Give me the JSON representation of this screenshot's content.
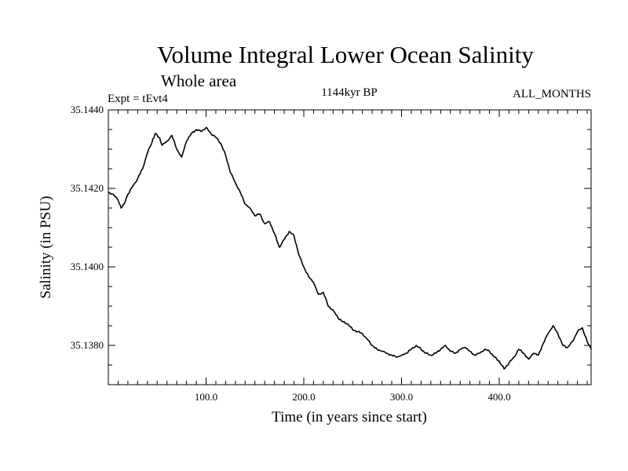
{
  "chart_data": {
    "type": "line",
    "title": "Volume Integral Lower Ocean Salinity",
    "subtitle": "Whole area",
    "annotations": {
      "left": "Expt = tEvt4",
      "center": "1144kyr BP",
      "right": "ALL_MONTHS"
    },
    "xlabel": "Time (in years since start)",
    "ylabel": "Salinity (in PSU)",
    "xlim": [
      0,
      494
    ],
    "ylim": [
      35.137,
      35.144
    ],
    "xticks": [
      100,
      200,
      300,
      400
    ],
    "xtick_labels": [
      "100.0",
      "200.0",
      "300.0",
      "400.0"
    ],
    "yticks": [
      35.138,
      35.14,
      35.142,
      35.144
    ],
    "ytick_labels": [
      "35.1380",
      "35.1400",
      "35.1420",
      "35.1440"
    ],
    "x_minor_step": 10,
    "y_minor_step": 0.0005,
    "grid": false,
    "series": [
      {
        "name": "salinity",
        "color": "#000000",
        "x": [
          0,
          5,
          10,
          13,
          16,
          20,
          25,
          30,
          35,
          40,
          45,
          48,
          52,
          55,
          60,
          65,
          70,
          75,
          80,
          85,
          90,
          95,
          100,
          105,
          110,
          115,
          120,
          125,
          130,
          135,
          140,
          145,
          150,
          155,
          160,
          165,
          170,
          175,
          180,
          185,
          190,
          195,
          200,
          205,
          210,
          215,
          220,
          225,
          230,
          235,
          240,
          245,
          250,
          255,
          260,
          265,
          270,
          275,
          280,
          285,
          290,
          295,
          300,
          305,
          310,
          315,
          320,
          325,
          330,
          335,
          340,
          345,
          350,
          355,
          360,
          365,
          370,
          375,
          380,
          385,
          390,
          395,
          400,
          405,
          410,
          415,
          420,
          425,
          430,
          435,
          440,
          445,
          450,
          455,
          460,
          465,
          470,
          475,
          480,
          485,
          490,
          494
        ],
        "y": [
          35.1419,
          35.14185,
          35.1417,
          35.1415,
          35.1416,
          35.14185,
          35.14205,
          35.14225,
          35.1425,
          35.1429,
          35.1432,
          35.1434,
          35.1433,
          35.1431,
          35.1432,
          35.14335,
          35.143,
          35.1428,
          35.1432,
          35.1434,
          35.1435,
          35.14345,
          35.14355,
          35.1434,
          35.1433,
          35.14315,
          35.14285,
          35.1424,
          35.14215,
          35.1419,
          35.1416,
          35.1415,
          35.1413,
          35.14135,
          35.1411,
          35.14115,
          35.14085,
          35.1405,
          35.1407,
          35.1409,
          35.1408,
          35.1403,
          35.14,
          35.13975,
          35.1396,
          35.1393,
          35.13935,
          35.139,
          35.1389,
          35.1387,
          35.1386,
          35.13855,
          35.1384,
          35.13835,
          35.1383,
          35.13815,
          35.138,
          35.1379,
          35.13785,
          35.1378,
          35.13775,
          35.1377,
          35.13775,
          35.1378,
          35.1379,
          35.138,
          35.1379,
          35.1378,
          35.13775,
          35.1378,
          35.1379,
          35.138,
          35.13785,
          35.1378,
          35.1379,
          35.13795,
          35.13785,
          35.13775,
          35.1378,
          35.1379,
          35.13785,
          35.1377,
          35.1376,
          35.1374,
          35.13755,
          35.1377,
          35.1379,
          35.1378,
          35.13765,
          35.1378,
          35.13775,
          35.13805,
          35.1383,
          35.1385,
          35.1383,
          35.138,
          35.13795,
          35.1381,
          35.13835,
          35.13845,
          35.1381,
          35.1379
        ]
      }
    ]
  }
}
